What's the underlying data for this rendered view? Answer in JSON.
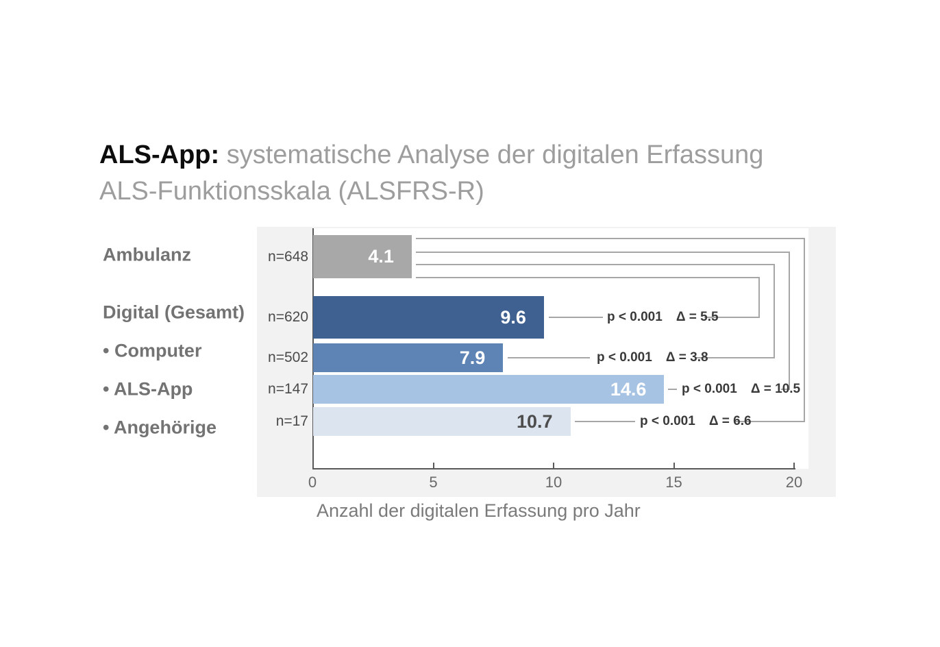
{
  "slide": {
    "title_bold": "ALS-App:",
    "title_rest": " systematische Analyse der digitalen Erfassung",
    "title_line2": "ALS-Funktionsskala (ALSFRS-R)"
  },
  "categories_panel": {
    "items": [
      {
        "label": "Ambulanz"
      },
      {
        "label": "Digital (Gesamt)"
      },
      {
        "label": "• Computer"
      },
      {
        "label": "• ALS-App"
      },
      {
        "label": "• Angehörige"
      }
    ]
  },
  "chart_data": {
    "type": "bar",
    "orientation": "horizontal",
    "title": "",
    "xlabel": "Anzahl der digitalen Erfassung pro Jahr",
    "xlim": [
      0,
      20
    ],
    "xticks": [
      0,
      5,
      10,
      15,
      20
    ],
    "grid": false,
    "reference_category": "Ambulanz",
    "rows": [
      {
        "category": "Ambulanz",
        "n_label": "n=648",
        "value": 4.1,
        "value_label": "4.1",
        "bar_color": "#a8a8a8",
        "value_color": "#ffffff"
      },
      {
        "category": "Digital (Gesamt)",
        "n_label": "n=620",
        "value": 9.6,
        "value_label": "9.6",
        "bar_color": "#3e6191",
        "value_color": "#ffffff"
      },
      {
        "category": "Computer",
        "n_label": "n=502",
        "value": 7.9,
        "value_label": "7.9",
        "bar_color": "#5e84b6",
        "value_color": "#ffffff"
      },
      {
        "category": "ALS-App",
        "n_label": "n=147",
        "value": 14.6,
        "value_label": "14.6",
        "bar_color": "#a6c3e4",
        "value_color": "#ffffff"
      },
      {
        "category": "Angehörige",
        "n_label": "n=17",
        "value": 10.7,
        "value_label": "10.7",
        "bar_color": "#dce4f0",
        "value_color": "#4d4d4d"
      }
    ],
    "comparisons": [
      {
        "versus": "Digital (Gesamt)",
        "p": "p < 0.001",
        "delta": "Δ = 5.5"
      },
      {
        "versus": "Computer",
        "p": "p < 0.001",
        "delta": "Δ = 3.8"
      },
      {
        "versus": "ALS-App",
        "p": "p < 0.001",
        "delta": "Δ = 10.5"
      },
      {
        "versus": "Angehörige",
        "p": "p < 0.001",
        "delta": "Δ = 6.6"
      }
    ],
    "colors": {
      "axis": "#595959",
      "bracket_line": "#a6a6a6",
      "panel_background": "#f2f2f2",
      "plot_background": "#ffffff"
    }
  }
}
